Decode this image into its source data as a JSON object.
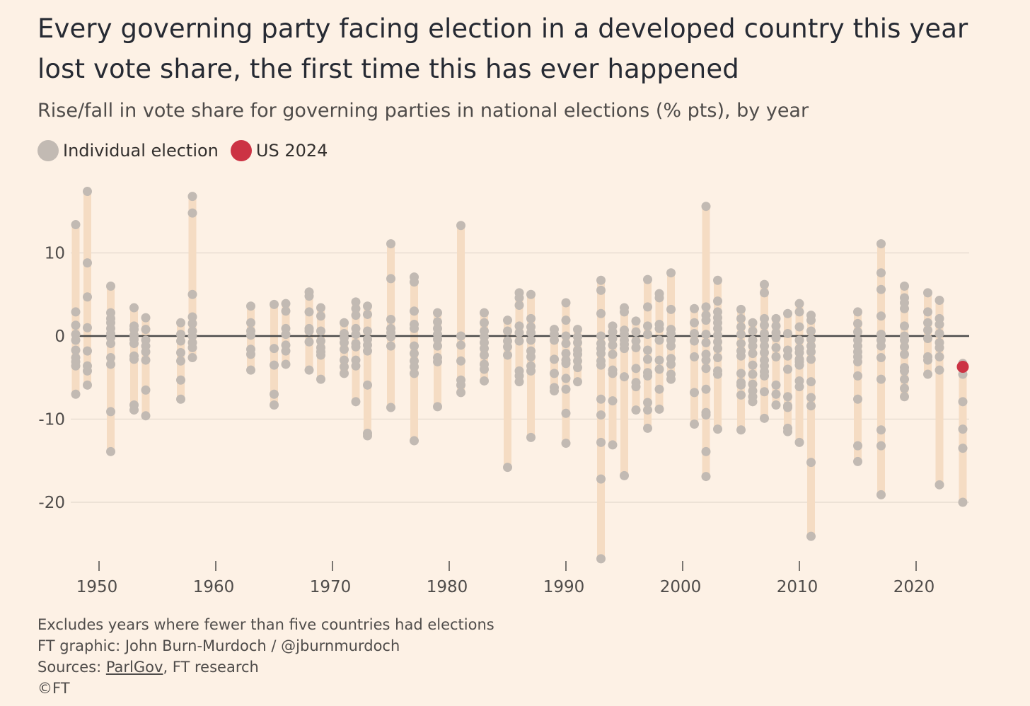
{
  "title": "Every governing party facing election in a developed country this year lost vote share, the first time this has ever happened",
  "subtitle": "Rise/fall in vote share for governing parties in national elections (% pts), by year",
  "legend": [
    {
      "label": "Individual election",
      "color": "#c2bab3"
    },
    {
      "label": "US 2024",
      "color": "#cc3344"
    }
  ],
  "footer": {
    "note": "Excludes years where fewer than five countries had elections",
    "credit": "FT graphic: John Burn-Murdoch / @jburnmurdoch",
    "sources_prefix": "Sources: ",
    "sources_link": "ParlGov",
    "sources_rest": ", FT research",
    "copyright": "©FT"
  },
  "chart_data": {
    "type": "scatter",
    "xlabel": "",
    "ylabel": "",
    "xlim": [
      1947,
      2025
    ],
    "ylim": [
      -27,
      17.5
    ],
    "x_ticks": [
      1950,
      1960,
      1970,
      1980,
      1990,
      2000,
      2010,
      2020
    ],
    "y_ticks": [
      -20,
      -10,
      0,
      10
    ],
    "y_tick_labels": [
      "-20",
      "-10",
      "0",
      "10"
    ],
    "grid": "horizontal",
    "zero_line": true,
    "colors": {
      "dot": "#c2bab3",
      "range_bar": "#f5dcc3",
      "highlight": "#cc3344",
      "grid": "#e8ddd2",
      "zero": "#4a4a4a"
    },
    "highlight": {
      "label": "US 2024",
      "x": 2024,
      "y": -3.7
    },
    "series": [
      {
        "x": 1948,
        "values": [
          13.4,
          2.9,
          1.3,
          0.2,
          -0.5,
          -1.7,
          -2.6,
          -3.1,
          -3.6,
          -7.0
        ]
      },
      {
        "x": 1949,
        "values": [
          17.4,
          8.8,
          4.7,
          1.0,
          -1.8,
          -3.6,
          -4.2,
          -5.9
        ]
      },
      {
        "x": 1951,
        "values": [
          6.0,
          2.8,
          2.1,
          1.6,
          0.9,
          0.3,
          -0.2,
          -0.9,
          -2.6,
          -3.4,
          -9.1,
          -13.9
        ]
      },
      {
        "x": 1953,
        "values": [
          3.4,
          1.2,
          0.8,
          0.1,
          -0.4,
          -0.9,
          -2.4,
          -2.8,
          -8.3,
          -8.9
        ]
      },
      {
        "x": 1954,
        "values": [
          2.2,
          0.8,
          -0.5,
          -1.2,
          -1.9,
          -2.9,
          -6.5,
          -9.6
        ]
      },
      {
        "x": 1957,
        "values": [
          1.6,
          0.2,
          -0.6,
          -2.0,
          -3.0,
          -5.3,
          -7.6
        ]
      },
      {
        "x": 1958,
        "values": [
          16.8,
          14.8,
          5.0,
          2.3,
          1.5,
          0.6,
          0.0,
          -0.8,
          -1.4,
          -2.6
        ]
      },
      {
        "x": 1963,
        "values": [
          3.6,
          1.6,
          0.6,
          0.1,
          -1.6,
          -2.2,
          -4.1
        ]
      },
      {
        "x": 1965,
        "values": [
          3.8,
          -1.5,
          -3.5,
          -7.0,
          -8.3
        ]
      },
      {
        "x": 1966,
        "values": [
          3.9,
          3.0,
          0.9,
          0.2,
          -1.1,
          -1.8,
          -3.4
        ]
      },
      {
        "x": 1968,
        "values": [
          5.3,
          4.8,
          2.9,
          0.9,
          0.6,
          -0.7,
          -4.1
        ]
      },
      {
        "x": 1969,
        "values": [
          3.4,
          2.4,
          0.6,
          -0.6,
          -1.4,
          -1.9,
          -2.3,
          -5.2
        ]
      },
      {
        "x": 1971,
        "values": [
          1.6,
          0.3,
          -0.2,
          -0.8,
          -1.6,
          -2.9,
          -3.7,
          -4.5
        ]
      },
      {
        "x": 1972,
        "values": [
          4.1,
          3.3,
          2.5,
          0.9,
          0.2,
          -0.9,
          -1.3,
          -2.9,
          -3.6,
          -7.9
        ]
      },
      {
        "x": 1973,
        "values": [
          3.6,
          2.6,
          0.6,
          -0.4,
          -1.1,
          -1.8,
          -5.9,
          -11.7,
          -12.0
        ]
      },
      {
        "x": 1975,
        "values": [
          11.1,
          6.9,
          2.0,
          0.9,
          0.4,
          -0.1,
          -1.2,
          -8.6
        ]
      },
      {
        "x": 1977,
        "values": [
          7.1,
          6.5,
          3.0,
          1.4,
          0.9,
          -1.2,
          -2.1,
          -3.0,
          -3.7,
          -4.5,
          -12.6
        ]
      },
      {
        "x": 1979,
        "values": [
          2.8,
          1.7,
          0.9,
          0.2,
          -0.4,
          -1.2,
          -2.6,
          -3.1,
          -8.5
        ]
      },
      {
        "x": 1981,
        "values": [
          13.3,
          0.0,
          -1.1,
          -3.0,
          -5.3,
          -5.9,
          -6.8
        ]
      },
      {
        "x": 1983,
        "values": [
          2.8,
          1.6,
          0.6,
          -0.1,
          -0.8,
          -1.5,
          -2.3,
          -3.4,
          -4.0,
          -5.4
        ]
      },
      {
        "x": 1985,
        "values": [
          1.9,
          0.6,
          -0.6,
          -1.3,
          -2.3,
          -15.8
        ]
      },
      {
        "x": 1986,
        "values": [
          5.2,
          4.6,
          3.7,
          1.2,
          0.4,
          -0.6,
          -4.2,
          -4.8,
          -5.5
        ]
      },
      {
        "x": 1987,
        "values": [
          5.0,
          2.1,
          1.1,
          0.4,
          -0.5,
          -1.8,
          -2.5,
          -3.6,
          -4.2,
          -12.2
        ]
      },
      {
        "x": 1989,
        "values": [
          0.8,
          0.2,
          -0.5,
          -2.8,
          -4.5,
          -6.2,
          -6.6
        ]
      },
      {
        "x": 1990,
        "values": [
          4.0,
          1.9,
          0.0,
          -0.9,
          -2.1,
          -2.9,
          -3.3,
          -5.1,
          -6.4,
          -9.3,
          -12.9
        ]
      },
      {
        "x": 1991,
        "values": [
          0.8,
          -0.1,
          -0.8,
          -1.7,
          -2.2,
          -3.0,
          -3.8,
          -5.5
        ]
      },
      {
        "x": 1993,
        "values": [
          6.7,
          5.5,
          2.7,
          0.0,
          -0.9,
          -1.5,
          -2.1,
          -3.0,
          -3.5,
          -7.6,
          -9.5,
          -12.8,
          -17.2,
          -26.8
        ]
      },
      {
        "x": 1994,
        "values": [
          1.2,
          0.5,
          -0.3,
          -1.1,
          -2.2,
          -4.1,
          -4.5,
          -7.8,
          -13.1
        ]
      },
      {
        "x": 1995,
        "values": [
          3.4,
          2.9,
          0.7,
          0.2,
          -0.5,
          -1.0,
          -1.5,
          -4.9,
          -16.8
        ]
      },
      {
        "x": 1996,
        "values": [
          1.8,
          0.5,
          -0.6,
          -1.4,
          -3.9,
          -5.6,
          -6.1,
          -8.9
        ]
      },
      {
        "x": 1997,
        "values": [
          6.8,
          3.5,
          1.2,
          0.2,
          -1.7,
          -2.8,
          -4.4,
          -4.8,
          -8.0,
          -8.9,
          -11.1
        ]
      },
      {
        "x": 1998,
        "values": [
          5.1,
          4.6,
          1.4,
          0.9,
          -0.5,
          -2.9,
          -4.0,
          -6.4,
          -8.8
        ]
      },
      {
        "x": 1999,
        "values": [
          7.6,
          3.2,
          0.8,
          0.3,
          -0.5,
          -1.2,
          -2.7,
          -3.4,
          -4.6,
          -5.2
        ]
      },
      {
        "x": 2001,
        "values": [
          3.3,
          1.6,
          0.3,
          -0.6,
          -2.5,
          -6.8,
          -10.6
        ]
      },
      {
        "x": 2002,
        "values": [
          15.6,
          3.5,
          2.5,
          1.9,
          0.2,
          -0.8,
          -2.2,
          -2.9,
          -3.9,
          -6.4,
          -9.2,
          -9.5,
          -13.9,
          -16.9
        ]
      },
      {
        "x": 2003,
        "values": [
          6.7,
          4.2,
          2.9,
          2.2,
          1.6,
          0.9,
          0.1,
          -0.7,
          -1.5,
          -2.6,
          -4.2,
          -4.6,
          -11.2
        ]
      },
      {
        "x": 2005,
        "values": [
          3.2,
          2.1,
          1.1,
          0.2,
          -0.9,
          -1.8,
          -2.4,
          -4.5,
          -5.6,
          -5.9,
          -7.1,
          -11.3
        ]
      },
      {
        "x": 2006,
        "values": [
          1.6,
          0.6,
          -0.5,
          -1.2,
          -2.1,
          -3.5,
          -4.6,
          -5.8,
          -6.6,
          -7.3,
          -7.9
        ]
      },
      {
        "x": 2007,
        "values": [
          6.2,
          5.2,
          2.1,
          1.3,
          0.3,
          -0.4,
          -1.2,
          -2.0,
          -2.9,
          -3.6,
          -4.3,
          -4.8,
          -6.7,
          -9.9
        ]
      },
      {
        "x": 2008,
        "values": [
          2.1,
          1.2,
          0.4,
          -0.2,
          -1.4,
          -2.5,
          -5.9,
          -7.0,
          -8.3
        ]
      },
      {
        "x": 2009,
        "values": [
          2.7,
          0.3,
          -1.7,
          -2.4,
          -4.0,
          -7.3,
          -8.4,
          -8.6,
          -11.1,
          -11.5
        ]
      },
      {
        "x": 2010,
        "values": [
          3.9,
          2.9,
          1.1,
          -0.5,
          -1.5,
          -2.0,
          -2.8,
          -3.1,
          -3.5,
          -5.4,
          -6.1,
          -12.8
        ]
      },
      {
        "x": 2011,
        "values": [
          2.5,
          1.9,
          0.6,
          -0.4,
          -1.2,
          -1.9,
          -2.8,
          -5.5,
          -7.4,
          -8.4,
          -15.2,
          -24.1
        ]
      },
      {
        "x": 2015,
        "values": [
          2.9,
          1.5,
          0.5,
          -0.5,
          -1.2,
          -1.9,
          -2.5,
          -3.1,
          -4.8,
          -7.6,
          -13.2,
          -15.1
        ]
      },
      {
        "x": 2017,
        "values": [
          11.1,
          7.6,
          5.6,
          2.4,
          0.2,
          -0.5,
          -1.2,
          -2.6,
          -5.2,
          -11.3,
          -13.2,
          -19.1
        ]
      },
      {
        "x": 2019,
        "values": [
          6.0,
          4.6,
          4.0,
          3.3,
          1.2,
          0.0,
          -0.5,
          -1.3,
          -2.2,
          -3.8,
          -4.2,
          -5.2,
          -6.3,
          -7.3
        ]
      },
      {
        "x": 2021,
        "values": [
          5.2,
          2.9,
          1.6,
          0.7,
          -0.3,
          -2.5,
          -2.9,
          -4.6
        ]
      },
      {
        "x": 2022,
        "values": [
          4.3,
          2.1,
          1.4,
          0.3,
          -0.8,
          -1.4,
          -2.5,
          -4.1,
          -17.9
        ]
      },
      {
        "x": 2024,
        "values": [
          -3.3,
          -4.6,
          -7.9,
          -11.2,
          -13.5,
          -20.0
        ]
      }
    ]
  }
}
